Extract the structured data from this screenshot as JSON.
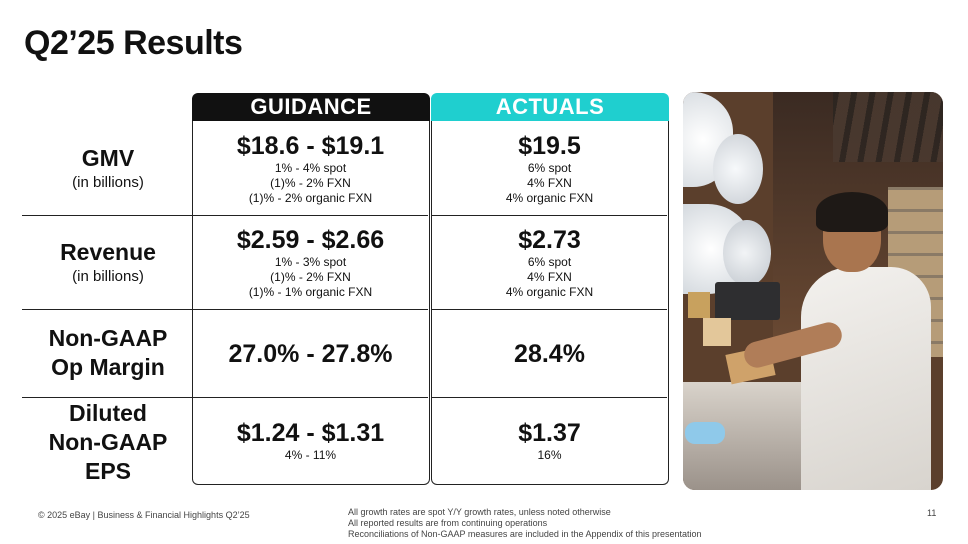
{
  "title": "Q2’25 Results",
  "columns": {
    "guidance": {
      "label": "GUIDANCE",
      "color": "#111111"
    },
    "actuals": {
      "label": "ACTUALS",
      "color": "#1fcfcf"
    }
  },
  "rows": [
    {
      "label": "GMV",
      "sublabel": "(in billions)",
      "guidance": {
        "value": "$18.6 - $19.1",
        "details": [
          "1% - 4% spot",
          "(1)% - 2% FXN",
          "(1)% - 2% organic FXN"
        ]
      },
      "actuals": {
        "value": "$19.5",
        "details": [
          "6% spot",
          "4% FXN",
          "4% organic FXN"
        ]
      }
    },
    {
      "label": "Revenue",
      "sublabel": "(in billions)",
      "guidance": {
        "value": "$2.59 - $2.66",
        "details": [
          "1% - 3% spot",
          "(1)% - 2% FXN",
          "(1)% - 1% organic FXN"
        ]
      },
      "actuals": {
        "value": "$2.73",
        "details": [
          "6% spot",
          "4% FXN",
          "4% organic FXN"
        ]
      }
    },
    {
      "label_lines": [
        "Non-GAAP",
        "Op Margin"
      ],
      "guidance": {
        "value": "27.0% - 27.8%"
      },
      "actuals": {
        "value": "28.4%"
      }
    },
    {
      "label_lines": [
        "Diluted",
        "Non-GAAP",
        "EPS"
      ],
      "guidance": {
        "value": "$1.24 - $1.31",
        "details": [
          "4% - 11%"
        ]
      },
      "actuals": {
        "value": "$1.37",
        "details": [
          "16%"
        ]
      }
    }
  ],
  "photo": {
    "icon": "warehouse-packing-photo"
  },
  "footer": {
    "copyright": "© 2025 eBay | Business & Financial Highlights Q2’25",
    "notes": [
      "All growth rates are spot Y/Y growth rates, unless noted otherwise",
      "All reported results are from continuing operations",
      "Reconciliations of Non-GAAP measures are included in the Appendix of this presentation"
    ],
    "page_number": "11"
  }
}
